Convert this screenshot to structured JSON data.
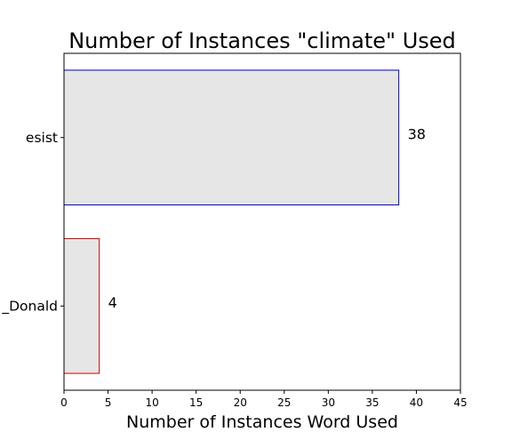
{
  "chart_data": {
    "type": "bar",
    "orientation": "horizontal",
    "title": "Number of Instances \"climate\" Used",
    "xlabel": "Number of Instances Word Used",
    "ylabel": "",
    "categories": [
      "esist",
      "_Donald"
    ],
    "values": [
      38,
      4
    ],
    "bar_fill": "#e6e6e6",
    "edge_colors": [
      "#0000cc",
      "#cc0000"
    ],
    "xlim": [
      0,
      45
    ],
    "xticks": [
      0,
      5,
      10,
      15,
      20,
      25,
      30,
      35,
      40,
      45
    ],
    "xtick_labels": [
      "0",
      "5",
      "10",
      "15",
      "20",
      "25",
      "30",
      "35",
      "40",
      "45"
    ],
    "data_labels": [
      "38",
      "4"
    ],
    "grid": false,
    "legend": "none"
  }
}
